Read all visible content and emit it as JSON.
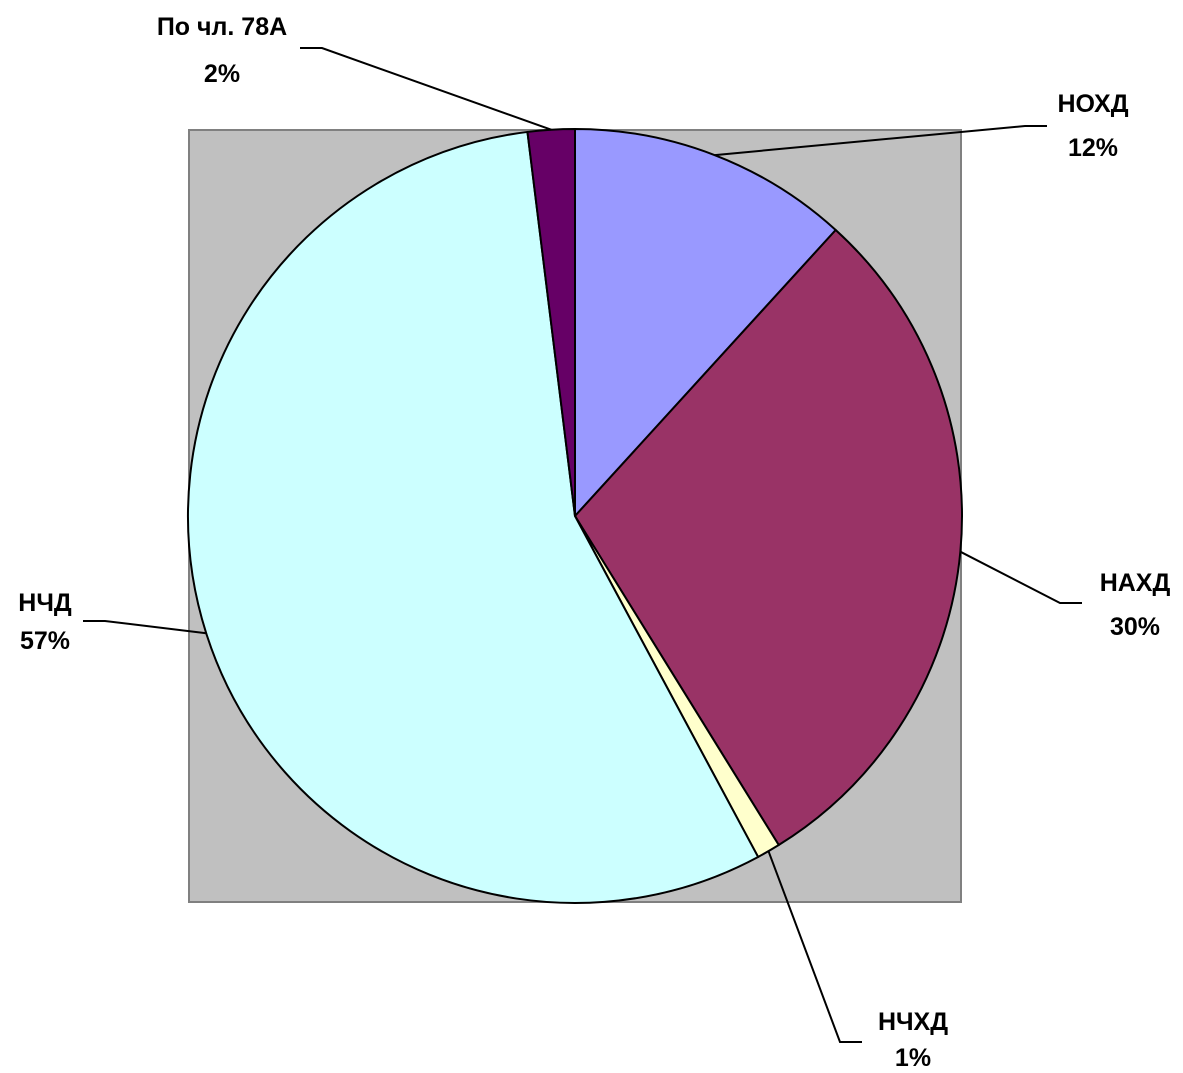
{
  "chart_data": {
    "type": "pie",
    "title": "",
    "background_color": "#c0c0c0",
    "start": "12 o'clock",
    "direction": "clockwise",
    "slices": [
      {
        "name": "НОХД",
        "value": 12,
        "value_label": "12%",
        "color": "#9999ff"
      },
      {
        "name": "НАХД",
        "value": 30,
        "value_label": "30%",
        "color": "#993366"
      },
      {
        "name": "НЧХД",
        "value": 1,
        "value_label": "1%",
        "color": "#ffffcc"
      },
      {
        "name": "НЧД",
        "value": 57,
        "value_label": "57%",
        "color": "#ccffff"
      },
      {
        "name": "По чл. 78А",
        "value": 2,
        "value_label": "2%",
        "color": "#660066"
      }
    ]
  }
}
